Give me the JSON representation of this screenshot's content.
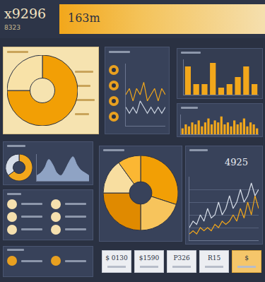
{
  "header": {
    "title": "x9296",
    "subtitle": "8323",
    "banner": "163m"
  },
  "chart_data": [
    {
      "type": "pie",
      "values": [
        75,
        25
      ],
      "colors": [
        "#f29f05",
        "#f8e2a8"
      ]
    },
    {
      "type": "line",
      "categories": [
        null,
        null,
        null,
        null,
        null,
        null,
        null,
        null,
        null,
        null,
        null,
        null
      ],
      "series": [
        {
          "color": "#f2a71b",
          "values": [
            5,
            6,
            4,
            6,
            5,
            7,
            4,
            5,
            6,
            4,
            6,
            5
          ]
        },
        {
          "color": "#c9d1de",
          "values": [
            3,
            2,
            3,
            2,
            4,
            3,
            2,
            3,
            2,
            3,
            2,
            3
          ]
        }
      ],
      "ylim": [
        0,
        10
      ],
      "tick_labels": false
    },
    {
      "type": "bar",
      "categories": [
        null,
        null,
        null,
        null,
        null,
        null,
        null,
        null,
        null
      ],
      "values": [
        8,
        3,
        3,
        9,
        2,
        3,
        5,
        8,
        3
      ],
      "color": "#f2a71b",
      "ylim": [
        0,
        10
      ],
      "tick_labels": false
    },
    {
      "type": "bar",
      "categories": [
        null,
        null,
        null,
        null,
        null,
        null,
        null,
        null,
        null,
        null,
        null,
        null,
        null,
        null,
        null,
        null,
        null,
        null,
        null,
        null,
        null,
        null,
        null,
        null
      ],
      "values": [
        3,
        5,
        4,
        6,
        5,
        7,
        4,
        6,
        8,
        5,
        7,
        6,
        9,
        5,
        6,
        4,
        7,
        5,
        6,
        8,
        4,
        6,
        5,
        3
      ],
      "color": "#f2a71b",
      "ylim": [
        0,
        10
      ],
      "tick_labels": false
    },
    {
      "type": "pie",
      "values": [
        65,
        35
      ],
      "colors": [
        "#f2a71b",
        "#d6dde8"
      ]
    },
    {
      "type": "area",
      "categories": [
        null,
        null,
        null,
        null,
        null,
        null,
        null,
        null,
        null,
        null,
        null,
        null,
        null,
        null
      ],
      "values": [
        2,
        3,
        5,
        8,
        6,
        3,
        2,
        4,
        7,
        9,
        6,
        4,
        3,
        2
      ],
      "color": "#8fa3c4",
      "ylim": [
        0,
        10
      ],
      "tick_labels": false
    },
    {
      "type": "pie",
      "values": [
        30,
        20,
        25,
        15,
        10
      ],
      "colors": [
        "#f29f05",
        "#f7c45c",
        "#e08a00",
        "#f8dea0",
        "#fbb733"
      ]
    },
    {
      "type": "line",
      "categories": [
        null,
        null,
        null,
        null,
        null,
        null,
        null,
        null,
        null,
        null,
        null,
        null,
        null,
        null,
        null,
        null,
        null,
        null,
        null,
        null
      ],
      "series": [
        {
          "color": "#f2a71b",
          "values": [
            1,
            1.5,
            1,
            2,
            1.5,
            2,
            1.5,
            2.5,
            2,
            3,
            2.5,
            3,
            4,
            3,
            5,
            3.5,
            6,
            4,
            7,
            5
          ]
        },
        {
          "color": "#d6dde8",
          "values": [
            2,
            3,
            2.5,
            4,
            3,
            5,
            3.5,
            4,
            6,
            4,
            5,
            7,
            5,
            6,
            8,
            6,
            7,
            9,
            7,
            8
          ]
        }
      ],
      "ylim": [
        0,
        10
      ],
      "yticks": [
        2,
        4,
        6,
        8
      ],
      "grid": true,
      "tick_labels": false
    }
  ],
  "line_label": "4925",
  "cards": [
    "$ 0130",
    "$1590",
    "P326",
    "R15",
    "$"
  ]
}
